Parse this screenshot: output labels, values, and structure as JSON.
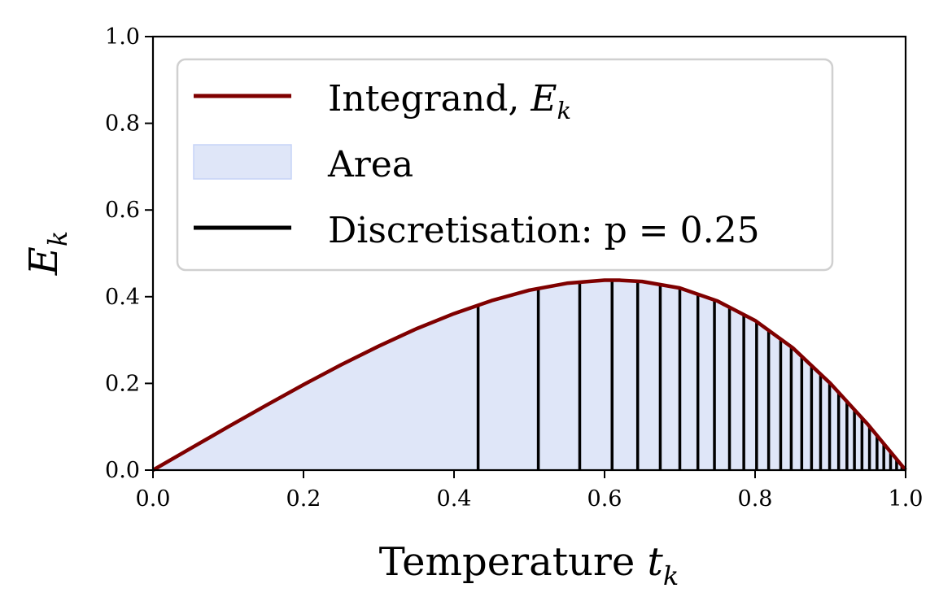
{
  "chart_data": {
    "type": "area",
    "xlabel": {
      "text": "Temperature ",
      "var": "t",
      "sub": "k"
    },
    "ylabel": {
      "var": "E",
      "sub": "k"
    },
    "xlim": [
      0.0,
      1.0
    ],
    "ylim": [
      0.0,
      1.0
    ],
    "x_ticks": [
      "0.0",
      "0.2",
      "0.4",
      "0.6",
      "0.8",
      "1.0"
    ],
    "y_ticks": [
      "0.0",
      "0.2",
      "0.4",
      "0.6",
      "0.8",
      "1.0"
    ],
    "grid": false,
    "legend_position": "top-left",
    "legend": [
      {
        "text": "Integrand, ",
        "var": "E",
        "sub": "k",
        "kind": "line",
        "color": "#7f0000"
      },
      {
        "text": "Area",
        "kind": "patch",
        "color": "#dfe6f8",
        "edge": "#c6d3f7"
      },
      {
        "text": "Discretisation: p = 0.25",
        "kind": "line",
        "color": "#000000"
      }
    ],
    "series": [
      {
        "kind": "line",
        "color": "#7f0000",
        "x": [
          0.0,
          0.05,
          0.1,
          0.15,
          0.2,
          0.25,
          0.3,
          0.35,
          0.4,
          0.45,
          0.5,
          0.55,
          0.6,
          0.62,
          0.65,
          0.7,
          0.75,
          0.8,
          0.85,
          0.9,
          0.95,
          1.0
        ],
        "y": [
          0.0,
          0.05,
          0.1,
          0.149,
          0.197,
          0.243,
          0.286,
          0.326,
          0.361,
          0.391,
          0.415,
          0.431,
          0.438,
          0.438,
          0.435,
          0.42,
          0.39,
          0.345,
          0.282,
          0.2,
          0.105,
          0.0
        ]
      }
    ],
    "area_color": "#dfe6f8",
    "discretisation_color": "#000000",
    "discretisation_x": [
      0.432,
      0.512,
      0.567,
      0.61,
      0.644,
      0.674,
      0.7,
      0.724,
      0.746,
      0.766,
      0.785,
      0.802,
      0.818,
      0.834,
      0.848,
      0.862,
      0.875,
      0.887,
      0.899,
      0.911,
      0.922,
      0.932,
      0.942,
      0.952,
      0.962,
      0.971,
      0.98,
      0.988,
      0.995
    ]
  }
}
